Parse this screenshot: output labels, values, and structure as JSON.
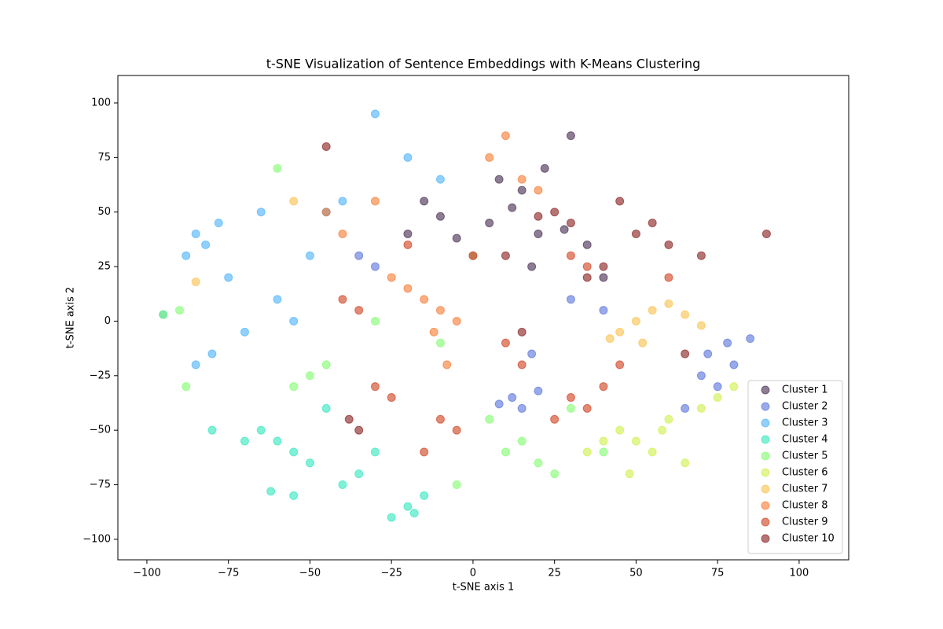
{
  "chart_data": {
    "type": "scatter",
    "title": "t-SNE Visualization of Sentence Embeddings with K-Means Clustering",
    "x_label": "t-SNE axis 1",
    "y_label": "t-SNE axis 2",
    "xlim": [
      -108.9,
      115.2
    ],
    "ylim": [
      -109.4,
      112.6
    ],
    "xticks": [
      {
        "value": -100,
        "label": "−100"
      },
      {
        "value": -75,
        "label": "−75"
      },
      {
        "value": -50,
        "label": "−50"
      },
      {
        "value": -25,
        "label": "−25"
      },
      0,
      25,
      50,
      75,
      100
    ],
    "yticks": [
      {
        "value": -100,
        "label": "−100"
      },
      {
        "value": -75,
        "label": "−75"
      },
      {
        "value": -50,
        "label": "−50"
      },
      {
        "value": -25,
        "label": "−25"
      },
      0,
      25,
      50,
      75,
      100
    ],
    "legend": "lower right",
    "opacity": 0.55,
    "series": [
      {
        "name": "Cluster 1",
        "color": "#30123b",
        "x": [
          5,
          12,
          20,
          -5,
          15,
          28,
          -15,
          8,
          35,
          0,
          22,
          -10,
          40,
          18,
          -20,
          30
        ],
        "values": [
          45,
          52,
          40,
          38,
          60,
          42,
          55,
          65,
          35,
          30,
          70,
          48,
          20,
          25,
          40,
          85
        ]
      },
      {
        "name": "Cluster 2",
        "color": "#4662d7",
        "x": [
          72,
          78,
          80,
          70,
          85,
          75,
          12,
          15,
          20,
          8,
          -35,
          -30,
          40,
          65,
          30,
          18
        ],
        "values": [
          -15,
          -10,
          -20,
          -25,
          -8,
          -30,
          -35,
          -40,
          -32,
          -38,
          30,
          25,
          5,
          -40,
          10,
          -15
        ]
      },
      {
        "name": "Cluster 3",
        "color": "#36aaf9",
        "x": [
          -85,
          -82,
          -78,
          -88,
          -75,
          -65,
          -60,
          -55,
          -70,
          -80,
          -85,
          -45,
          -40,
          -50,
          -30,
          -95,
          -20,
          -10
        ],
        "values": [
          40,
          35,
          45,
          30,
          20,
          50,
          10,
          0,
          -5,
          -15,
          -20,
          50,
          55,
          30,
          95,
          3,
          75,
          65
        ]
      },
      {
        "name": "Cluster 4",
        "color": "#1ae4b6",
        "x": [
          -60,
          -55,
          -65,
          -50,
          -20,
          -25,
          -15,
          -18,
          -55,
          -62,
          -35,
          -40,
          -30,
          -80,
          -70,
          -45
        ],
        "values": [
          -55,
          -60,
          -50,
          -65,
          -85,
          -90,
          -80,
          -88,
          -80,
          -78,
          -70,
          -75,
          -60,
          -50,
          -55,
          -40
        ]
      },
      {
        "name": "Cluster 5",
        "color": "#72fe5e",
        "x": [
          -50,
          -55,
          -45,
          -90,
          -95,
          10,
          15,
          20,
          25,
          -60,
          5,
          -5,
          -10,
          -88,
          30,
          40,
          -30
        ],
        "values": [
          -25,
          -30,
          -20,
          5,
          3,
          -60,
          -55,
          -65,
          -70,
          70,
          -45,
          -75,
          -10,
          -30,
          -40,
          -60,
          0
        ]
      },
      {
        "name": "Cluster 6",
        "color": "#c8ef34",
        "x": [
          50,
          55,
          45,
          60,
          70,
          65,
          40,
          75,
          35,
          80,
          58,
          48
        ],
        "values": [
          -55,
          -60,
          -50,
          -45,
          -40,
          -65,
          -55,
          -35,
          -60,
          -30,
          -50,
          -70
        ]
      },
      {
        "name": "Cluster 7",
        "color": "#faba39",
        "x": [
          50,
          45,
          55,
          60,
          65,
          70,
          42,
          52,
          -55,
          -85
        ],
        "values": [
          0,
          -5,
          5,
          8,
          3,
          -2,
          -8,
          -10,
          55,
          18
        ]
      },
      {
        "name": "Cluster 8",
        "color": "#f66b19",
        "x": [
          -15,
          -10,
          -20,
          -5,
          -25,
          0,
          -12,
          10,
          5,
          -30,
          20,
          -40,
          -8,
          15,
          -45
        ],
        "values": [
          10,
          5,
          15,
          0,
          20,
          30,
          -5,
          85,
          75,
          55,
          60,
          40,
          -20,
          65,
          50
        ]
      },
      {
        "name": "Cluster 9",
        "color": "#cb2a04",
        "x": [
          30,
          35,
          40,
          25,
          -10,
          -5,
          -30,
          -25,
          30,
          35,
          -20,
          45,
          -40,
          15,
          60,
          10,
          -15,
          -35
        ],
        "values": [
          -35,
          -40,
          -30,
          -45,
          -45,
          -50,
          -30,
          -35,
          30,
          25,
          35,
          -20,
          10,
          -20,
          20,
          -10,
          -60,
          5
        ]
      },
      {
        "name": "Cluster 10",
        "color": "#7a0403",
        "x": [
          25,
          30,
          20,
          55,
          50,
          60,
          45,
          -35,
          -38,
          40,
          35,
          70,
          10,
          -45,
          15,
          90,
          65
        ],
        "values": [
          50,
          45,
          48,
          45,
          40,
          35,
          55,
          -50,
          -45,
          25,
          20,
          30,
          30,
          80,
          -5,
          40,
          -15
        ]
      }
    ]
  }
}
